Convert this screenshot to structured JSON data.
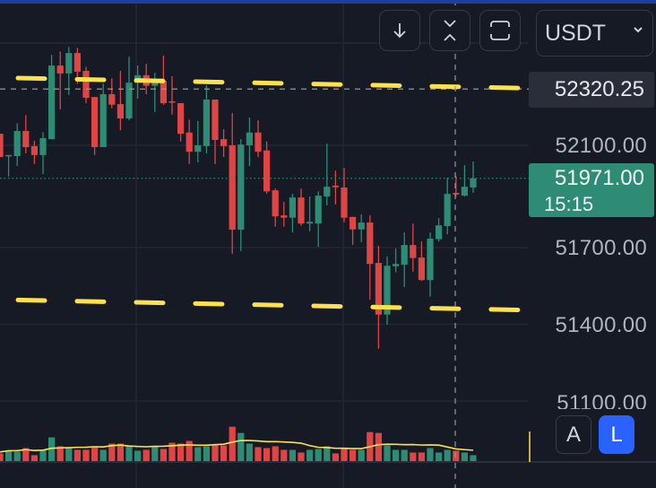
{
  "toolbar": {
    "scroll_down_icon": "arrow-down-icon",
    "fit_icon": "collapse-vertical-icon",
    "fullscreen_icon": "frame-icon",
    "currency": "USDT"
  },
  "price_axis": {
    "labels": [
      "52100.00",
      "51700.00",
      "51400.00",
      "51100.00"
    ],
    "crosshair_price": "52320.25",
    "current_price": "51971.00",
    "countdown": "15:15"
  },
  "scale_buttons": {
    "auto": "A",
    "log": "L"
  },
  "colors": {
    "up": "#2e8c74",
    "down": "#e04545",
    "trendline": "#ffe24a",
    "volume_ma": "#ffe24a",
    "accent": "#2962ff"
  },
  "chart_data": {
    "type": "candlestick",
    "candles": [
      [
        52145,
        52145,
        52054,
        52054
      ],
      [
        52058,
        52062,
        51978,
        52062
      ],
      [
        52058,
        52186,
        52019,
        52156
      ],
      [
        52156,
        52218,
        52069,
        52093
      ],
      [
        52097,
        52118,
        52027,
        52062
      ],
      [
        52062,
        52151,
        51987,
        52128
      ],
      [
        52124,
        52454,
        52124,
        52412
      ],
      [
        52412,
        52467,
        52240,
        52381
      ],
      [
        52381,
        52485,
        52297,
        52461
      ],
      [
        52461,
        52481,
        52341,
        52388
      ],
      [
        52391,
        52407,
        52265,
        52286
      ],
      [
        52289,
        52289,
        52062,
        52093
      ],
      [
        52093,
        52341,
        52093,
        52300
      ],
      [
        52300,
        52362,
        52245,
        52259
      ],
      [
        52261,
        52391,
        52159,
        52205
      ],
      [
        52205,
        52446,
        52198,
        52345
      ],
      [
        52345,
        52412,
        52282,
        52374
      ],
      [
        52374,
        52419,
        52300,
        52333
      ],
      [
        52333,
        52384,
        52230,
        52352
      ],
      [
        52352,
        52451,
        52259,
        52265
      ],
      [
        52272,
        52370,
        52220,
        52267
      ],
      [
        52265,
        52265,
        52115,
        52145
      ],
      [
        52150,
        52200,
        52027,
        52075
      ],
      [
        52075,
        52195,
        52034,
        52100
      ],
      [
        52097,
        52335,
        52069,
        52279
      ],
      [
        52279,
        52279,
        52027,
        52121
      ],
      [
        52124,
        52163,
        52054,
        52097
      ],
      [
        52100,
        52226,
        51676,
        51770
      ],
      [
        51770,
        52124,
        51686,
        52103
      ],
      [
        52100,
        52209,
        52019,
        52150
      ],
      [
        52150,
        52198,
        52054,
        52075
      ],
      [
        52080,
        52115,
        51911,
        51920
      ],
      [
        51924,
        51931,
        51782,
        51822
      ],
      [
        51826,
        51879,
        51782,
        51817
      ],
      [
        51817,
        51910,
        51759,
        51896
      ],
      [
        51896,
        51931,
        51785,
        51794
      ],
      [
        51794,
        51900,
        51764,
        51801
      ],
      [
        51794,
        51920,
        51703,
        51903
      ],
      [
        51900,
        52107,
        51865,
        51938
      ],
      [
        51942,
        52001,
        51869,
        51936
      ],
      [
        51935,
        52012,
        51799,
        51817
      ],
      [
        51820,
        51820,
        51711,
        51771
      ],
      [
        51771,
        51830,
        51721,
        51798
      ],
      [
        51798,
        51826,
        51496,
        51636
      ],
      [
        51640,
        51707,
        51304,
        51438
      ],
      [
        51438,
        51665,
        51399,
        51629
      ],
      [
        51627,
        51696,
        51603,
        51636
      ],
      [
        51633,
        51759,
        51546,
        51710
      ],
      [
        51710,
        51794,
        51606,
        51659
      ],
      [
        51661,
        51724,
        51570,
        51573
      ],
      [
        51573,
        51759,
        51508,
        51735
      ],
      [
        51733,
        51815,
        51724,
        51787
      ],
      [
        51784,
        51973,
        51752,
        51910
      ],
      [
        51914,
        51980,
        51900,
        51908
      ],
      [
        51903,
        52023,
        51900,
        51938
      ],
      [
        51935,
        52037,
        51914,
        51971
      ]
    ],
    "candle_format": [
      "open",
      "high",
      "low",
      "close"
    ],
    "volume": [
      26,
      35,
      32,
      44,
      20,
      38,
      80,
      50,
      47,
      38,
      38,
      47,
      38,
      59,
      59,
      50,
      35,
      38,
      50,
      41,
      62,
      59,
      68,
      47,
      50,
      53,
      53,
      116,
      95,
      59,
      47,
      44,
      50,
      38,
      38,
      29,
      38,
      41,
      50,
      26,
      44,
      38,
      38,
      98,
      95,
      53,
      38,
      38,
      29,
      29,
      44,
      29,
      38,
      35,
      29,
      20
    ],
    "volume_ma_period": 9,
    "trendlines": [
      {
        "from_bar": 2,
        "from_price": 52363,
        "to_bar": 60.4,
        "to_price": 52324
      },
      {
        "from_bar": 2,
        "from_price": 51495,
        "to_bar": 60.4,
        "to_price": 51456
      }
    ],
    "crosshair": {
      "bar": 53,
      "price": 52320.25
    },
    "gridlines_price": [
      52500,
      52100,
      51700,
      51400,
      51100
    ],
    "current_price": 51971
  }
}
